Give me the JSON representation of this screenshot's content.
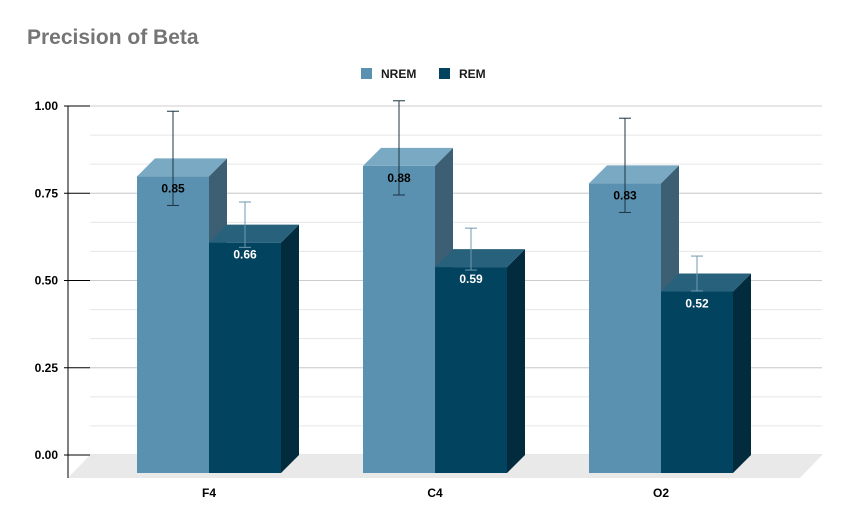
{
  "chart_data": {
    "type": "bar",
    "title": "Precision of Beta",
    "xlabel": "",
    "ylabel": "",
    "categories": [
      "F4",
      "C4",
      "O2"
    ],
    "series": [
      {
        "name": "NREM",
        "values": [
          0.85,
          0.88,
          0.83
        ],
        "labels": [
          "0.85",
          "0.88",
          "0.83"
        ],
        "errors": [
          0.135,
          0.135,
          0.135
        ],
        "color": "#5b91b0",
        "side_color": "#3c5f74",
        "top_color": "#7aa9c4"
      },
      {
        "name": "REM",
        "values": [
          0.66,
          0.59,
          0.52
        ],
        "labels": [
          "0.66",
          "0.59",
          "0.52"
        ],
        "errors": [
          0.065,
          0.06,
          0.05
        ],
        "color": "#02435f",
        "side_color": "#022b3d",
        "top_color": "#27617b"
      }
    ],
    "ylim": [
      0,
      1
    ],
    "yticks": [
      "0.00",
      "0.25",
      "0.50",
      "0.75",
      "1.00"
    ],
    "ytick_values": [
      0,
      0.25,
      0.5,
      0.75,
      1
    ],
    "grid": true,
    "legend_position": "top-center",
    "style": "3d"
  }
}
